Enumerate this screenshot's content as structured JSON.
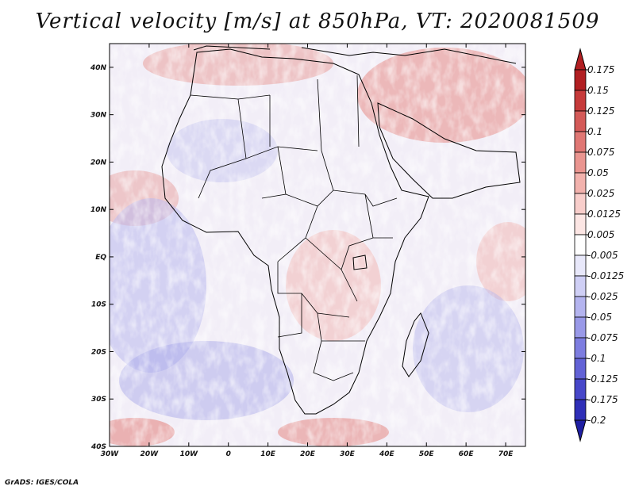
{
  "title": "Vertical velocity [m/s] at 850hPa, VT: 2020081509",
  "credit": "GrADS: IGES/COLA",
  "map": {
    "lon_range": [
      -30,
      75
    ],
    "lat_range": [
      -40,
      45
    ],
    "lon_ticks": [
      {
        "value": -30,
        "label": "30W"
      },
      {
        "value": -20,
        "label": "20W"
      },
      {
        "value": -10,
        "label": "10W"
      },
      {
        "value": 0,
        "label": "0"
      },
      {
        "value": 10,
        "label": "10E"
      },
      {
        "value": 20,
        "label": "20E"
      },
      {
        "value": 30,
        "label": "30E"
      },
      {
        "value": 40,
        "label": "40E"
      },
      {
        "value": 50,
        "label": "50E"
      },
      {
        "value": 60,
        "label": "60E"
      },
      {
        "value": 70,
        "label": "70E"
      }
    ],
    "lat_ticks": [
      {
        "value": 40,
        "label": "40N"
      },
      {
        "value": 30,
        "label": "30N"
      },
      {
        "value": 20,
        "label": "20N"
      },
      {
        "value": 10,
        "label": "10N"
      },
      {
        "value": 0,
        "label": "EQ"
      },
      {
        "value": -10,
        "label": "10S"
      },
      {
        "value": -20,
        "label": "20S"
      },
      {
        "value": -30,
        "label": "30S"
      },
      {
        "value": -40,
        "label": "40S"
      }
    ]
  },
  "colorbar": {
    "levels": [
      {
        "label": "0.175",
        "color": "#b11f22"
      },
      {
        "label": "0.15",
        "color": "#c63a3a"
      },
      {
        "label": "0.125",
        "color": "#d45a58"
      },
      {
        "label": "0.1",
        "color": "#e07774"
      },
      {
        "label": "0.075",
        "color": "#ea9590"
      },
      {
        "label": "0.05",
        "color": "#f2b2ad"
      },
      {
        "label": "0.025",
        "color": "#f8cecb"
      },
      {
        "label": "0.0125",
        "color": "#fce6e4"
      },
      {
        "label": "0.005",
        "color": "#ffffff"
      },
      {
        "label": "-0.005",
        "color": "#e8e8fa"
      },
      {
        "label": "-0.0125",
        "color": "#cfcff5"
      },
      {
        "label": "-0.025",
        "color": "#b4b4ef"
      },
      {
        "label": "-0.05",
        "color": "#9999e8"
      },
      {
        "label": "-0.075",
        "color": "#7d7de0"
      },
      {
        "label": "-0.1",
        "color": "#6262d6"
      },
      {
        "label": "-0.125",
        "color": "#4747c9"
      },
      {
        "label": "-0.175",
        "color": "#2f2fb8"
      },
      {
        "label": "-0.2",
        "color": "#1f1fa3"
      }
    ]
  },
  "colors": {
    "upward_dominant": "#e07774",
    "downward_dominant": "#9999e8",
    "background": "#f4f0f8",
    "border": "#000000"
  }
}
